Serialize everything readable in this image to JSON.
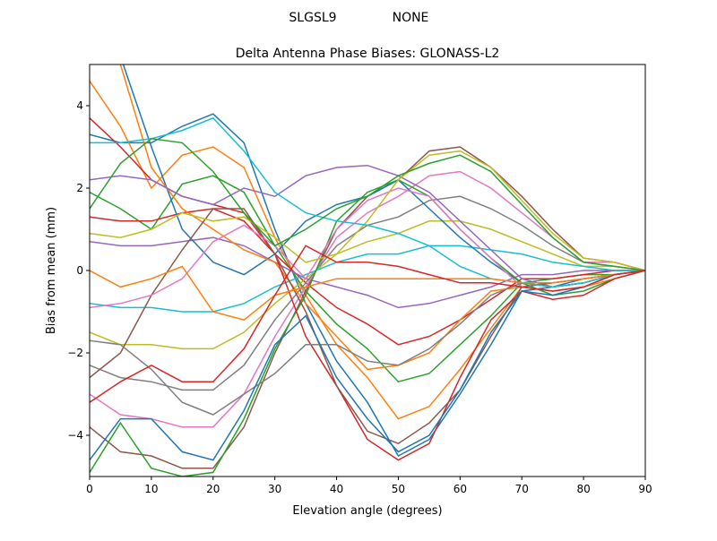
{
  "suptitle": {
    "station": "SLGSL9",
    "radome": "NONE"
  },
  "chart_data": {
    "type": "line",
    "title": "Delta Antenna Phase Biases: GLONASS-L2",
    "xlabel": "Elevation angle (degrees)",
    "ylabel": "Bias from mean (mm)",
    "xlim": [
      0,
      90
    ],
    "ylim": [
      -5,
      5
    ],
    "xticks": [
      0,
      10,
      20,
      30,
      40,
      50,
      60,
      70,
      80,
      90
    ],
    "yticks": [
      -4,
      -2,
      0,
      2,
      4
    ],
    "grid": false,
    "legend": "none",
    "colors": [
      "#1f77b4",
      "#ff7f0e",
      "#2ca02c",
      "#d62728",
      "#9467bd",
      "#8c564b",
      "#e377c2",
      "#7f7f7f",
      "#bcbd22",
      "#17becf"
    ],
    "x": [
      0,
      5,
      10,
      15,
      20,
      25,
      30,
      35,
      40,
      45,
      50,
      55,
      60,
      65,
      70,
      75,
      80,
      85,
      90
    ],
    "series": [
      {
        "values": [
          3.3,
          3.1,
          3.1,
          3.5,
          3.8,
          3.1,
          1.0,
          -0.8,
          -2.2,
          -3.2,
          -4.5,
          -4.1,
          -3.0,
          -1.8,
          -0.5,
          -0.4,
          -0.2,
          -0.1,
          0
        ]
      },
      {
        "values": [
          4.6,
          3.5,
          2.0,
          2.8,
          3.0,
          2.5,
          0.8,
          -0.6,
          -1.8,
          -2.6,
          -3.6,
          -3.3,
          -2.4,
          -1.4,
          -0.4,
          -0.3,
          -0.2,
          -0.1,
          0
        ]
      },
      {
        "values": [
          1.9,
          1.5,
          1.0,
          2.1,
          2.3,
          1.9,
          0.6,
          -0.5,
          -1.3,
          -1.9,
          -2.7,
          -2.5,
          -1.8,
          -1.1,
          -0.3,
          -0.2,
          -0.1,
          -0.1,
          0
        ]
      },
      {
        "values": [
          1.3,
          1.2,
          1.2,
          1.4,
          1.5,
          1.2,
          0.4,
          -0.3,
          -0.9,
          -1.3,
          -1.8,
          -1.6,
          -1.2,
          -0.7,
          -0.2,
          -0.2,
          -0.1,
          0,
          0
        ]
      },
      {
        "values": [
          0.7,
          0.6,
          0.6,
          0.7,
          0.8,
          0.6,
          0.2,
          -0.2,
          -0.4,
          -0.6,
          -0.9,
          -0.8,
          -0.6,
          -0.4,
          -0.1,
          -0.1,
          0,
          0,
          0
        ]
      },
      {
        "values": [
          -3.8,
          -4.4,
          -4.5,
          -4.8,
          -4.8,
          -3.8,
          -2.0,
          -0.5,
          1.0,
          1.8,
          2.2,
          2.9,
          3.0,
          2.5,
          1.8,
          1.0,
          0.3,
          0.2,
          0
        ]
      },
      {
        "values": [
          -3.0,
          -3.5,
          -3.6,
          -3.8,
          -3.8,
          -3.0,
          -1.6,
          -0.4,
          0.8,
          1.4,
          1.8,
          2.3,
          2.4,
          2.0,
          1.4,
          0.8,
          0.2,
          0.2,
          0
        ]
      },
      {
        "values": [
          -2.3,
          -2.6,
          -2.7,
          -2.9,
          -2.9,
          -2.3,
          -1.2,
          -0.3,
          0.6,
          1.1,
          1.3,
          1.7,
          1.8,
          1.5,
          1.1,
          0.6,
          0.2,
          0.1,
          0
        ]
      },
      {
        "values": [
          -1.5,
          -1.8,
          -1.8,
          -1.9,
          -1.9,
          -1.5,
          -0.8,
          -0.2,
          0.4,
          0.7,
          0.9,
          1.2,
          1.2,
          1.0,
          0.7,
          0.4,
          0.1,
          0.1,
          0
        ]
      },
      {
        "values": [
          -0.8,
          -0.9,
          -0.9,
          -1.0,
          -1.0,
          -0.8,
          -0.4,
          -0.1,
          0.2,
          0.4,
          0.4,
          0.6,
          0.6,
          0.5,
          0.4,
          0.2,
          0.1,
          0,
          0
        ]
      },
      {
        "values": [
          5.5,
          5.2,
          3.0,
          1.0,
          0.2,
          -0.1,
          0.4,
          1.2,
          1.6,
          1.8,
          2.2,
          1.5,
          0.8,
          0.2,
          -0.3,
          -0.4,
          -0.3,
          -0.1,
          0
        ]
      },
      {
        "values": [
          6.0,
          5.0,
          2.5,
          1.5,
          1.0,
          0.5,
          0.2,
          -0.8,
          -1.6,
          -2.4,
          -2.3,
          -2.0,
          -1.2,
          -0.5,
          -0.4,
          -0.5,
          -0.4,
          -0.2,
          0
        ]
      },
      {
        "values": [
          -4.9,
          -3.7,
          -4.8,
          -5.0,
          -4.9,
          -3.6,
          -1.9,
          -0.6,
          1.2,
          1.9,
          2.2,
          1.8,
          1.0,
          0.3,
          -0.3,
          -0.6,
          -0.5,
          -0.2,
          0
        ]
      },
      {
        "values": [
          3.7,
          3.0,
          2.2,
          1.8,
          1.6,
          1.4,
          0.4,
          -1.6,
          -2.8,
          -4.1,
          -4.6,
          -4.2,
          -2.6,
          -1.2,
          -0.5,
          -0.7,
          -0.6,
          -0.2,
          0
        ]
      },
      {
        "values": [
          2.2,
          2.3,
          2.2,
          1.8,
          1.6,
          2.0,
          1.8,
          2.3,
          2.5,
          2.55,
          2.3,
          1.9,
          1.2,
          0.5,
          -0.2,
          -0.4,
          -0.3,
          -0.1,
          0
        ]
      },
      {
        "values": [
          -2.6,
          -2.0,
          -0.6,
          0.5,
          1.5,
          1.5,
          0.4,
          -1.0,
          -2.8,
          -3.9,
          -4.2,
          -3.7,
          -2.9,
          -1.6,
          -0.4,
          -0.3,
          -0.2,
          -0.1,
          0
        ]
      },
      {
        "values": [
          -0.9,
          -0.8,
          -0.6,
          -0.2,
          0.7,
          1.1,
          0.6,
          -0.2,
          1.0,
          1.7,
          2.0,
          1.8,
          1.0,
          0.3,
          -0.4,
          -0.5,
          -0.4,
          -0.1,
          0
        ]
      },
      {
        "values": [
          -1.7,
          -1.8,
          -2.4,
          -3.2,
          -3.5,
          -3.0,
          -2.5,
          -1.8,
          -1.8,
          -2.2,
          -2.3,
          -1.9,
          -1.3,
          -0.6,
          -0.3,
          -0.4,
          -0.3,
          -0.1,
          0
        ]
      },
      {
        "values": [
          0.9,
          0.8,
          1.0,
          1.4,
          1.2,
          1.3,
          0.8,
          0.2,
          0.4,
          1.2,
          2.2,
          2.8,
          2.9,
          2.5,
          1.7,
          0.9,
          0.3,
          0.2,
          0
        ]
      },
      {
        "values": [
          3.1,
          3.1,
          3.2,
          3.4,
          3.7,
          2.9,
          1.9,
          1.4,
          1.2,
          1.1,
          0.9,
          0.6,
          0.1,
          -0.2,
          -0.3,
          -0.4,
          -0.3,
          -0.1,
          0
        ]
      },
      {
        "values": [
          -4.6,
          -3.6,
          -3.6,
          -4.4,
          -4.6,
          -3.4,
          -1.8,
          -1.1,
          -2.6,
          -3.6,
          -4.4,
          -4.0,
          -2.9,
          -1.5,
          -0.5,
          -0.6,
          -0.4,
          -0.1,
          0
        ]
      },
      {
        "values": [
          0.0,
          -0.4,
          -0.2,
          0.1,
          -1.0,
          -1.2,
          -0.6,
          -0.4,
          -0.2,
          -0.2,
          -0.2,
          -0.2,
          -0.2,
          -0.2,
          -0.3,
          -0.3,
          -0.2,
          -0.1,
          0
        ]
      },
      {
        "values": [
          1.5,
          2.6,
          3.2,
          3.1,
          2.4,
          1.4,
          0.6,
          1.0,
          1.5,
          1.8,
          2.3,
          2.6,
          2.8,
          2.4,
          1.6,
          0.8,
          0.2,
          0.1,
          0
        ]
      },
      {
        "values": [
          -3.2,
          -2.7,
          -2.3,
          -2.7,
          -2.7,
          -1.9,
          -0.6,
          0.6,
          0.2,
          0.2,
          0.1,
          -0.1,
          -0.3,
          -0.3,
          -0.4,
          -0.5,
          -0.4,
          -0.1,
          0
        ]
      }
    ]
  }
}
